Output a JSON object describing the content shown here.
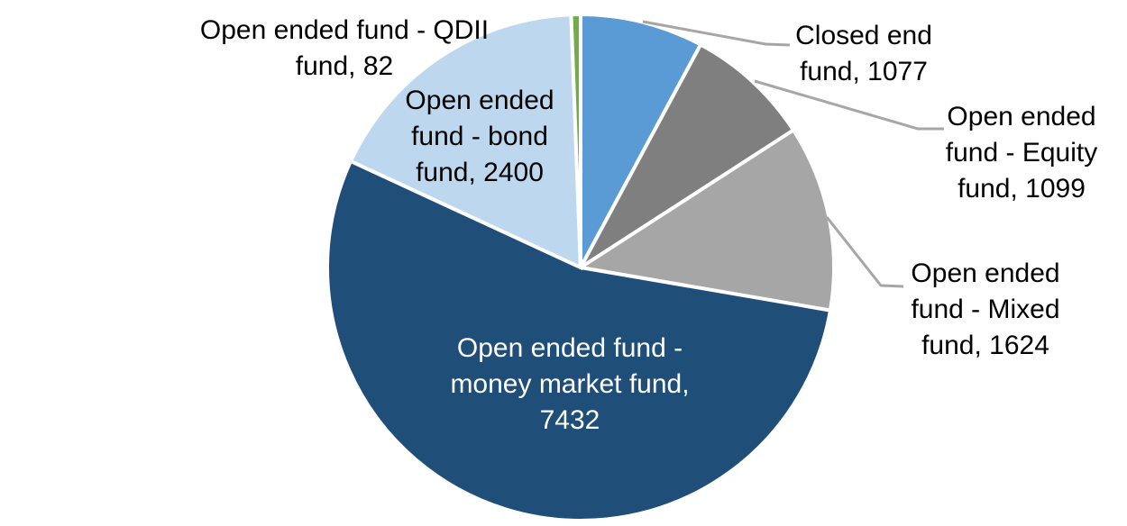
{
  "chart_data": {
    "type": "pie",
    "title": "",
    "legend": "none",
    "label_format": "category, value",
    "direction": "clockwise",
    "start_angle_deg": 0,
    "total": 13714,
    "background_color": "#ffffff",
    "leader_line_color": "#a6a6a6",
    "series": [
      {
        "name": "Closed end fund",
        "value": 1077,
        "color": "#5b9bd5",
        "label_text": "Closed end fund, 1077",
        "label_lines": [
          "Closed end",
          "fund, 1077"
        ],
        "label_placement": "outside-with-leader"
      },
      {
        "name": "Open ended fund - Equity fund",
        "value": 1099,
        "color": "#7f7f7f",
        "label_text": "Open ended fund - Equity fund, 1099",
        "label_lines": [
          "Open ended",
          "fund - Equity",
          "fund, 1099"
        ],
        "label_placement": "outside-with-leader"
      },
      {
        "name": "Open ended fund - Mixed fund",
        "value": 1624,
        "color": "#a6a6a6",
        "label_text": "Open ended fund - Mixed fund, 1624",
        "label_lines": [
          "Open ended",
          "fund - Mixed",
          "fund, 1624"
        ],
        "label_placement": "outside-with-leader"
      },
      {
        "name": "Open ended fund - money market fund",
        "value": 7432,
        "color": "#1f4e79",
        "label_text": "Open ended fund - money market fund, 7432",
        "label_lines": [
          "Open ended fund -",
          "money market fund,",
          "7432"
        ],
        "label_placement": "inside"
      },
      {
        "name": "Open ended fund - bond fund",
        "value": 2400,
        "color": "#bdd7ee",
        "label_text": "Open ended fund - bond fund, 2400",
        "label_lines": [
          "Open ended",
          "fund - bond",
          "fund, 2400"
        ],
        "label_placement": "outside"
      },
      {
        "name": "Open ended fund - QDII fund",
        "value": 82,
        "color": "#70ad47",
        "label_text": "Open ended fund - QDII fund, 82",
        "label_lines": [
          "Open ended fund - QDII",
          "fund, 82"
        ],
        "label_placement": "outside"
      }
    ]
  }
}
